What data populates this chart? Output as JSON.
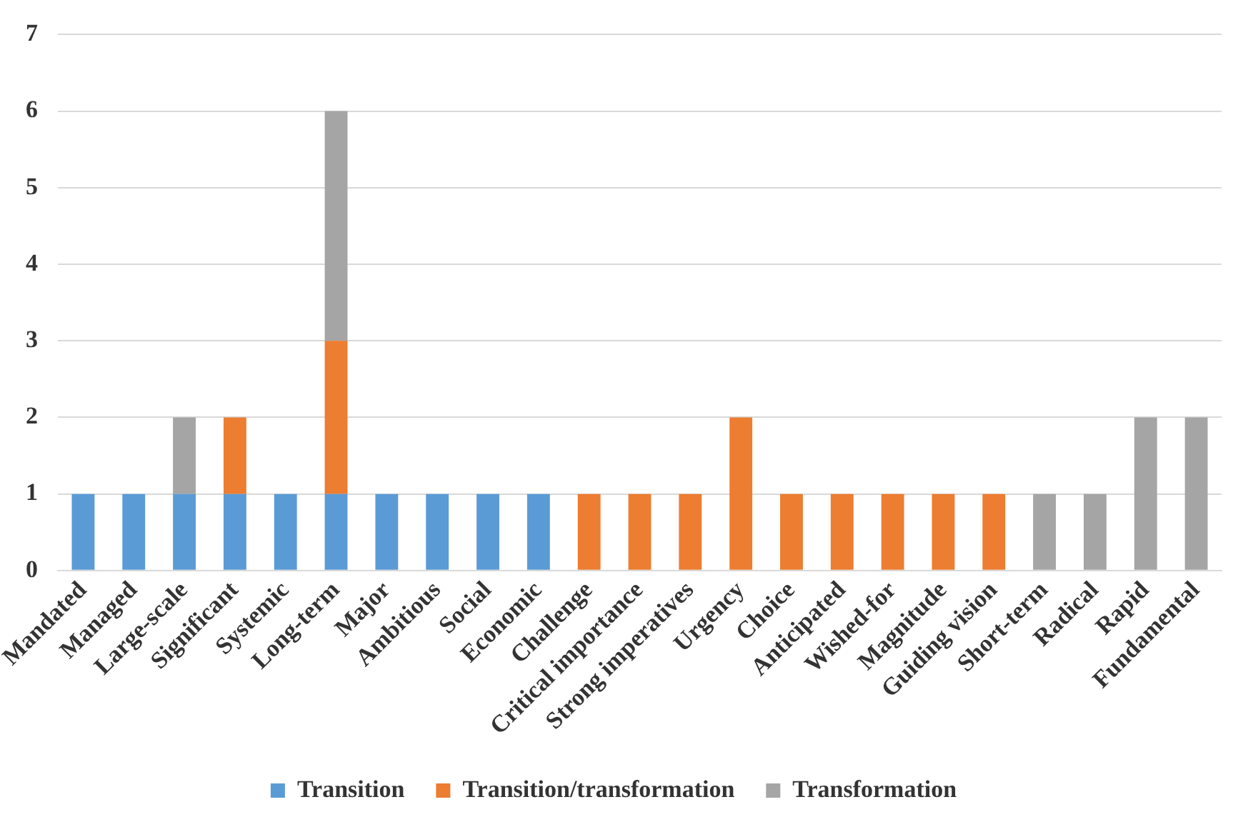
{
  "chart_data": {
    "type": "bar",
    "stacked": true,
    "legend": "bottom",
    "grid": "y",
    "categories": [
      "Mandated",
      "Managed",
      "Large-scale",
      "Significant",
      "Systemic",
      "Long-term",
      "Major",
      "Ambitious",
      "Social",
      "Economic",
      "Challenge",
      "Critical importance",
      "Strong imperatives",
      "Urgency",
      "Choice",
      "Anticipated",
      "Wished-for",
      "Magnitude",
      "Guiding vision",
      "Short-term",
      "Radical",
      "Rapid",
      "Fundamental"
    ],
    "series": [
      {
        "name": "Transition",
        "color": "#5b9bd5",
        "values": [
          1,
          1,
          1,
          1,
          1,
          1,
          1,
          1,
          1,
          1,
          null,
          null,
          null,
          null,
          null,
          null,
          null,
          null,
          null,
          null,
          null,
          null,
          null
        ]
      },
      {
        "name": "Transition/transformation",
        "color": "#ed7d31",
        "values": [
          null,
          null,
          null,
          1,
          null,
          2,
          null,
          null,
          null,
          null,
          1,
          1,
          1,
          2,
          1,
          1,
          1,
          1,
          1,
          null,
          null,
          null,
          null
        ]
      },
      {
        "name": "Transformation",
        "color": "#a5a5a5",
        "values": [
          null,
          null,
          1,
          null,
          null,
          3,
          null,
          null,
          null,
          null,
          null,
          null,
          null,
          null,
          null,
          null,
          null,
          null,
          null,
          1,
          1,
          2,
          2
        ]
      }
    ],
    "ylim": [
      0,
      7
    ],
    "yticks": [
      0,
      1,
      2,
      3,
      4,
      5,
      6,
      7
    ]
  }
}
